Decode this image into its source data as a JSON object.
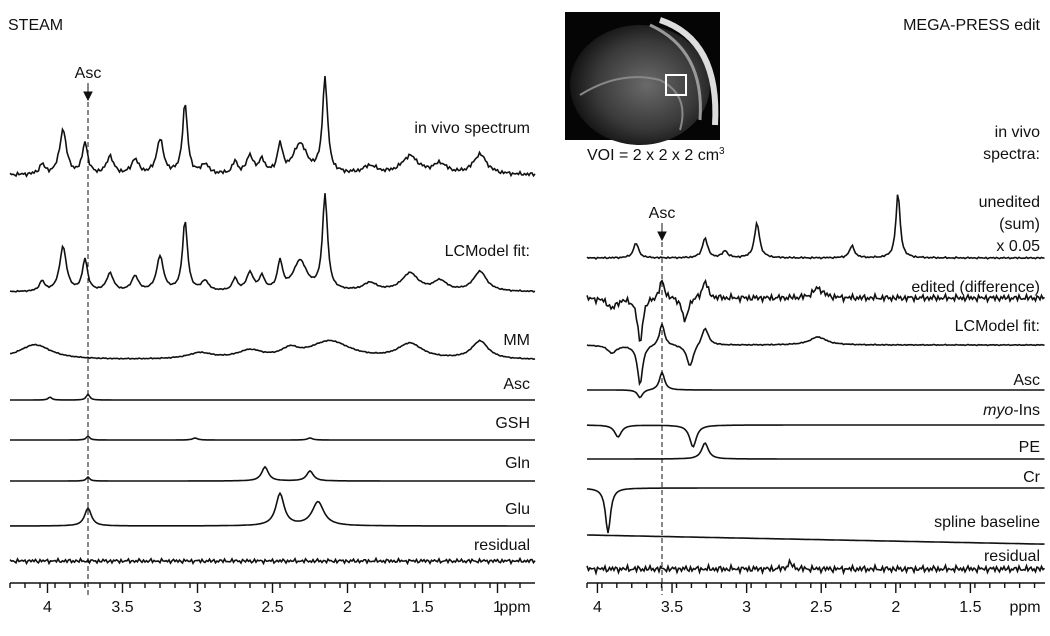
{
  "panels": [
    {
      "title": "STEAM",
      "xlabel": "ppm",
      "xlim": [
        4.25,
        0.75
      ],
      "xticks": [
        4.0,
        3.5,
        3.0,
        2.5,
        2.0,
        1.5,
        1.0
      ],
      "annotation": "Asc",
      "trace_labels": [
        [
          "in vivo spectrum"
        ],
        [
          "LCModel fit:"
        ],
        [
          "MM"
        ],
        [
          "Asc"
        ],
        [
          "GSH"
        ],
        [
          "Gln"
        ],
        [
          "Glu"
        ],
        [
          "residual"
        ]
      ]
    },
    {
      "title": "MEGA-PRESS edit",
      "xlabel": "ppm",
      "xlim": [
        4.07,
        1.0
      ],
      "xticks": [
        4.0,
        3.5,
        3.0,
        2.5,
        2.0,
        1.5
      ],
      "annotation": "Asc",
      "trace_labels": [
        [
          "in vivo",
          "spectra:"
        ],
        [
          "unedited",
          "(sum)",
          "x 0.05"
        ],
        [
          "edited (difference)"
        ],
        [
          "LCModel fit:"
        ],
        [
          "Asc"
        ],
        [
          "-Ins"
        ],
        [
          "PE"
        ],
        [
          "Cr"
        ],
        [
          "spline baseline"
        ],
        [
          "residual"
        ]
      ],
      "italic_prefix": "myo",
      "voi_label": "VOI = 2 x 2 x 2 cm",
      "voi_exponent": "3"
    }
  ]
}
